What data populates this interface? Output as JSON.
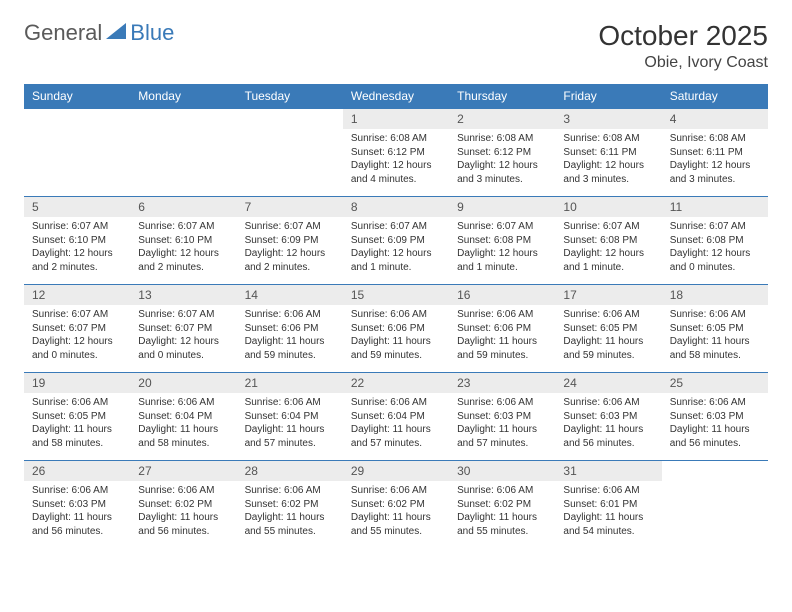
{
  "logo": {
    "general": "General",
    "blue": "Blue"
  },
  "title": "October 2025",
  "location": "Obie, Ivory Coast",
  "colors": {
    "brand": "#3a7ab8",
    "header_bg": "#3a7ab8",
    "daynum_bg": "#ececec",
    "text": "#333333"
  },
  "weekdays": [
    "Sunday",
    "Monday",
    "Tuesday",
    "Wednesday",
    "Thursday",
    "Friday",
    "Saturday"
  ],
  "layout": {
    "first_weekday_index": 3,
    "num_days": 31
  },
  "days": {
    "1": {
      "sunrise": "6:08 AM",
      "sunset": "6:12 PM",
      "daylight": "12 hours and 4 minutes."
    },
    "2": {
      "sunrise": "6:08 AM",
      "sunset": "6:12 PM",
      "daylight": "12 hours and 3 minutes."
    },
    "3": {
      "sunrise": "6:08 AM",
      "sunset": "6:11 PM",
      "daylight": "12 hours and 3 minutes."
    },
    "4": {
      "sunrise": "6:08 AM",
      "sunset": "6:11 PM",
      "daylight": "12 hours and 3 minutes."
    },
    "5": {
      "sunrise": "6:07 AM",
      "sunset": "6:10 PM",
      "daylight": "12 hours and 2 minutes."
    },
    "6": {
      "sunrise": "6:07 AM",
      "sunset": "6:10 PM",
      "daylight": "12 hours and 2 minutes."
    },
    "7": {
      "sunrise": "6:07 AM",
      "sunset": "6:09 PM",
      "daylight": "12 hours and 2 minutes."
    },
    "8": {
      "sunrise": "6:07 AM",
      "sunset": "6:09 PM",
      "daylight": "12 hours and 1 minute."
    },
    "9": {
      "sunrise": "6:07 AM",
      "sunset": "6:08 PM",
      "daylight": "12 hours and 1 minute."
    },
    "10": {
      "sunrise": "6:07 AM",
      "sunset": "6:08 PM",
      "daylight": "12 hours and 1 minute."
    },
    "11": {
      "sunrise": "6:07 AM",
      "sunset": "6:08 PM",
      "daylight": "12 hours and 0 minutes."
    },
    "12": {
      "sunrise": "6:07 AM",
      "sunset": "6:07 PM",
      "daylight": "12 hours and 0 minutes."
    },
    "13": {
      "sunrise": "6:07 AM",
      "sunset": "6:07 PM",
      "daylight": "12 hours and 0 minutes."
    },
    "14": {
      "sunrise": "6:06 AM",
      "sunset": "6:06 PM",
      "daylight": "11 hours and 59 minutes."
    },
    "15": {
      "sunrise": "6:06 AM",
      "sunset": "6:06 PM",
      "daylight": "11 hours and 59 minutes."
    },
    "16": {
      "sunrise": "6:06 AM",
      "sunset": "6:06 PM",
      "daylight": "11 hours and 59 minutes."
    },
    "17": {
      "sunrise": "6:06 AM",
      "sunset": "6:05 PM",
      "daylight": "11 hours and 59 minutes."
    },
    "18": {
      "sunrise": "6:06 AM",
      "sunset": "6:05 PM",
      "daylight": "11 hours and 58 minutes."
    },
    "19": {
      "sunrise": "6:06 AM",
      "sunset": "6:05 PM",
      "daylight": "11 hours and 58 minutes."
    },
    "20": {
      "sunrise": "6:06 AM",
      "sunset": "6:04 PM",
      "daylight": "11 hours and 58 minutes."
    },
    "21": {
      "sunrise": "6:06 AM",
      "sunset": "6:04 PM",
      "daylight": "11 hours and 57 minutes."
    },
    "22": {
      "sunrise": "6:06 AM",
      "sunset": "6:04 PM",
      "daylight": "11 hours and 57 minutes."
    },
    "23": {
      "sunrise": "6:06 AM",
      "sunset": "6:03 PM",
      "daylight": "11 hours and 57 minutes."
    },
    "24": {
      "sunrise": "6:06 AM",
      "sunset": "6:03 PM",
      "daylight": "11 hours and 56 minutes."
    },
    "25": {
      "sunrise": "6:06 AM",
      "sunset": "6:03 PM",
      "daylight": "11 hours and 56 minutes."
    },
    "26": {
      "sunrise": "6:06 AM",
      "sunset": "6:03 PM",
      "daylight": "11 hours and 56 minutes."
    },
    "27": {
      "sunrise": "6:06 AM",
      "sunset": "6:02 PM",
      "daylight": "11 hours and 56 minutes."
    },
    "28": {
      "sunrise": "6:06 AM",
      "sunset": "6:02 PM",
      "daylight": "11 hours and 55 minutes."
    },
    "29": {
      "sunrise": "6:06 AM",
      "sunset": "6:02 PM",
      "daylight": "11 hours and 55 minutes."
    },
    "30": {
      "sunrise": "6:06 AM",
      "sunset": "6:02 PM",
      "daylight": "11 hours and 55 minutes."
    },
    "31": {
      "sunrise": "6:06 AM",
      "sunset": "6:01 PM",
      "daylight": "11 hours and 54 minutes."
    }
  }
}
